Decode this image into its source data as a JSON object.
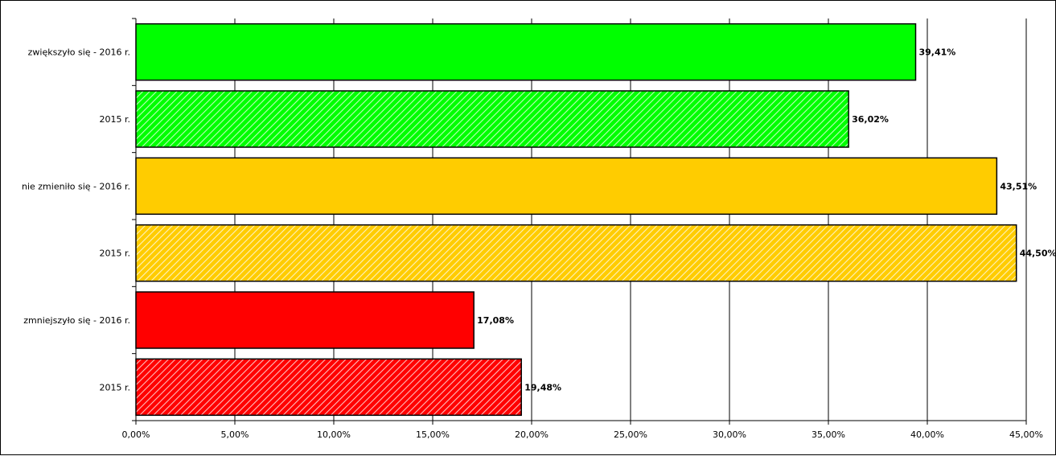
{
  "chart_data": {
    "type": "bar",
    "orientation": "horizontal",
    "title": "",
    "xlabel": "",
    "ylabel": "",
    "xlim": [
      0,
      45
    ],
    "x_ticks": [
      0,
      5,
      10,
      15,
      20,
      25,
      30,
      35,
      40,
      45
    ],
    "x_tick_labels": [
      "0,00%",
      "5,00%",
      "10,00%",
      "15,00%",
      "20,00%",
      "25,00%",
      "30,00%",
      "35,00%",
      "40,00%",
      "45,00%"
    ],
    "grid": "vertical",
    "legend": "none",
    "categories": [
      "zwiększyło się - 2016 r.",
      "2015 r.",
      "nie zmieniło się - 2016 r.",
      "2015 r.",
      "zmniejszyło się - 2016 r.",
      "2015 r."
    ],
    "values": [
      39.41,
      36.02,
      43.51,
      44.5,
      17.08,
      19.48
    ],
    "data_labels": [
      "39,41%",
      "36,02%",
      "43,51%",
      "44,50%",
      "17,08%",
      "19,48%"
    ],
    "colors": [
      "#00ff00",
      "#00ff00",
      "#ffcc00",
      "#ffcc00",
      "#ff0000",
      "#ff0000"
    ],
    "fill_style": [
      "solid",
      "hatched",
      "solid",
      "hatched",
      "solid",
      "hatched"
    ]
  }
}
